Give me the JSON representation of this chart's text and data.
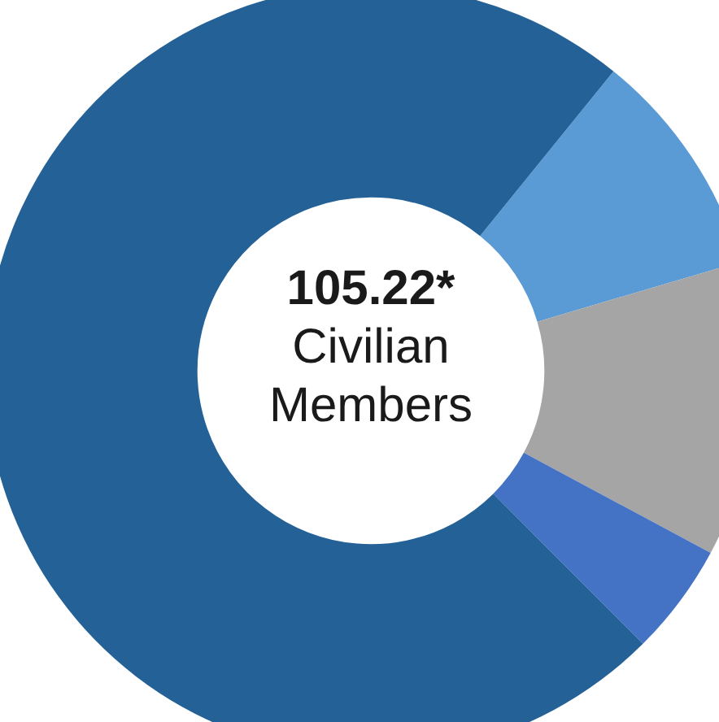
{
  "chart_data": {
    "type": "donut",
    "categories": [
      null,
      null,
      null,
      null
    ],
    "values": [
      9.6,
      12.4,
      4.7,
      73.3
    ],
    "colors": [
      "#5b9bd5",
      "#a5a5a5",
      "#4472c4",
      "#246197"
    ],
    "annotations": [
      "105.22*",
      "Civilian Members"
    ],
    "legend": false
  }
}
